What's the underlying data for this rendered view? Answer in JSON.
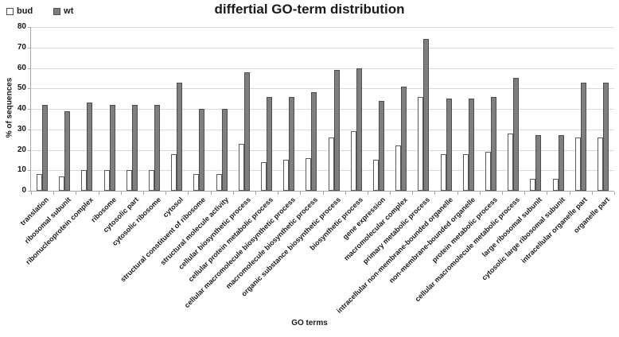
{
  "header": {
    "title": "differtial GO-term distribution"
  },
  "legend": {
    "items": [
      {
        "label": "bud",
        "fill": "#ffffff",
        "border": "#4d4d4d"
      },
      {
        "label": "wt",
        "fill": "#7f7f7f",
        "border": "#4d4d4d"
      }
    ]
  },
  "colors": {
    "bud_fill": "#ffffff",
    "bud_border": "#595959",
    "wt_fill": "#7f7f7f",
    "wt_border": "#4d4d4d",
    "gridline": "#d9d9d9",
    "axis": "#a6a6a6",
    "text": "#1a1a1a"
  },
  "chart_data": {
    "type": "bar",
    "title": "differtial GO-term distribution",
    "xlabel": "GO terms",
    "ylabel": "% of sequences",
    "ylim": [
      0,
      80
    ],
    "ytick_step": 10,
    "ytick_labels": [
      "0",
      "10",
      "20",
      "30",
      "40",
      "50",
      "60",
      "70",
      "80"
    ],
    "grid": true,
    "legend_position": "top-left",
    "categories": [
      "translation",
      "ribosomal subunit",
      "ribonucleoprotein complex",
      "ribosome",
      "cytosolic part",
      "cytosolic ribosome",
      "cytosol",
      "structural constituent of ribosome",
      "structural molecule activity",
      "cellular biosynthetic process",
      "cellular protein metabolic process",
      "cellular macromolecule biosynthetic process",
      "macromolecule biosynthetic process",
      "organic substance biosynthetic process",
      "biosynthetic process",
      "gene expression",
      "macromolecular complex",
      "primary metabolic process",
      "intracellular non-membrane-bounded organelle",
      "non-membrane-bounded organelle",
      "protein metabolic process",
      "cellular macromolecule metabolic process",
      "large ribosomal subunit",
      "cytosolic large ribosomal subunit",
      "intracellular organelle part",
      "organelle part"
    ],
    "series": [
      {
        "name": "bud",
        "fill": "#ffffff",
        "border": "#595959",
        "values": [
          8,
          7,
          10,
          10,
          10,
          10,
          18,
          8,
          8,
          23,
          14,
          15,
          16,
          26,
          29,
          15,
          22,
          46,
          18,
          18,
          19,
          28,
          6,
          6,
          26,
          26
        ]
      },
      {
        "name": "wt",
        "fill": "#7f7f7f",
        "border": "#4d4d4d",
        "values": [
          42,
          39,
          43,
          42,
          42,
          42,
          53,
          40,
          40,
          58,
          46,
          46,
          48,
          59,
          60,
          44,
          51,
          74,
          45,
          45,
          46,
          55,
          27,
          27,
          53,
          53
        ]
      }
    ]
  }
}
